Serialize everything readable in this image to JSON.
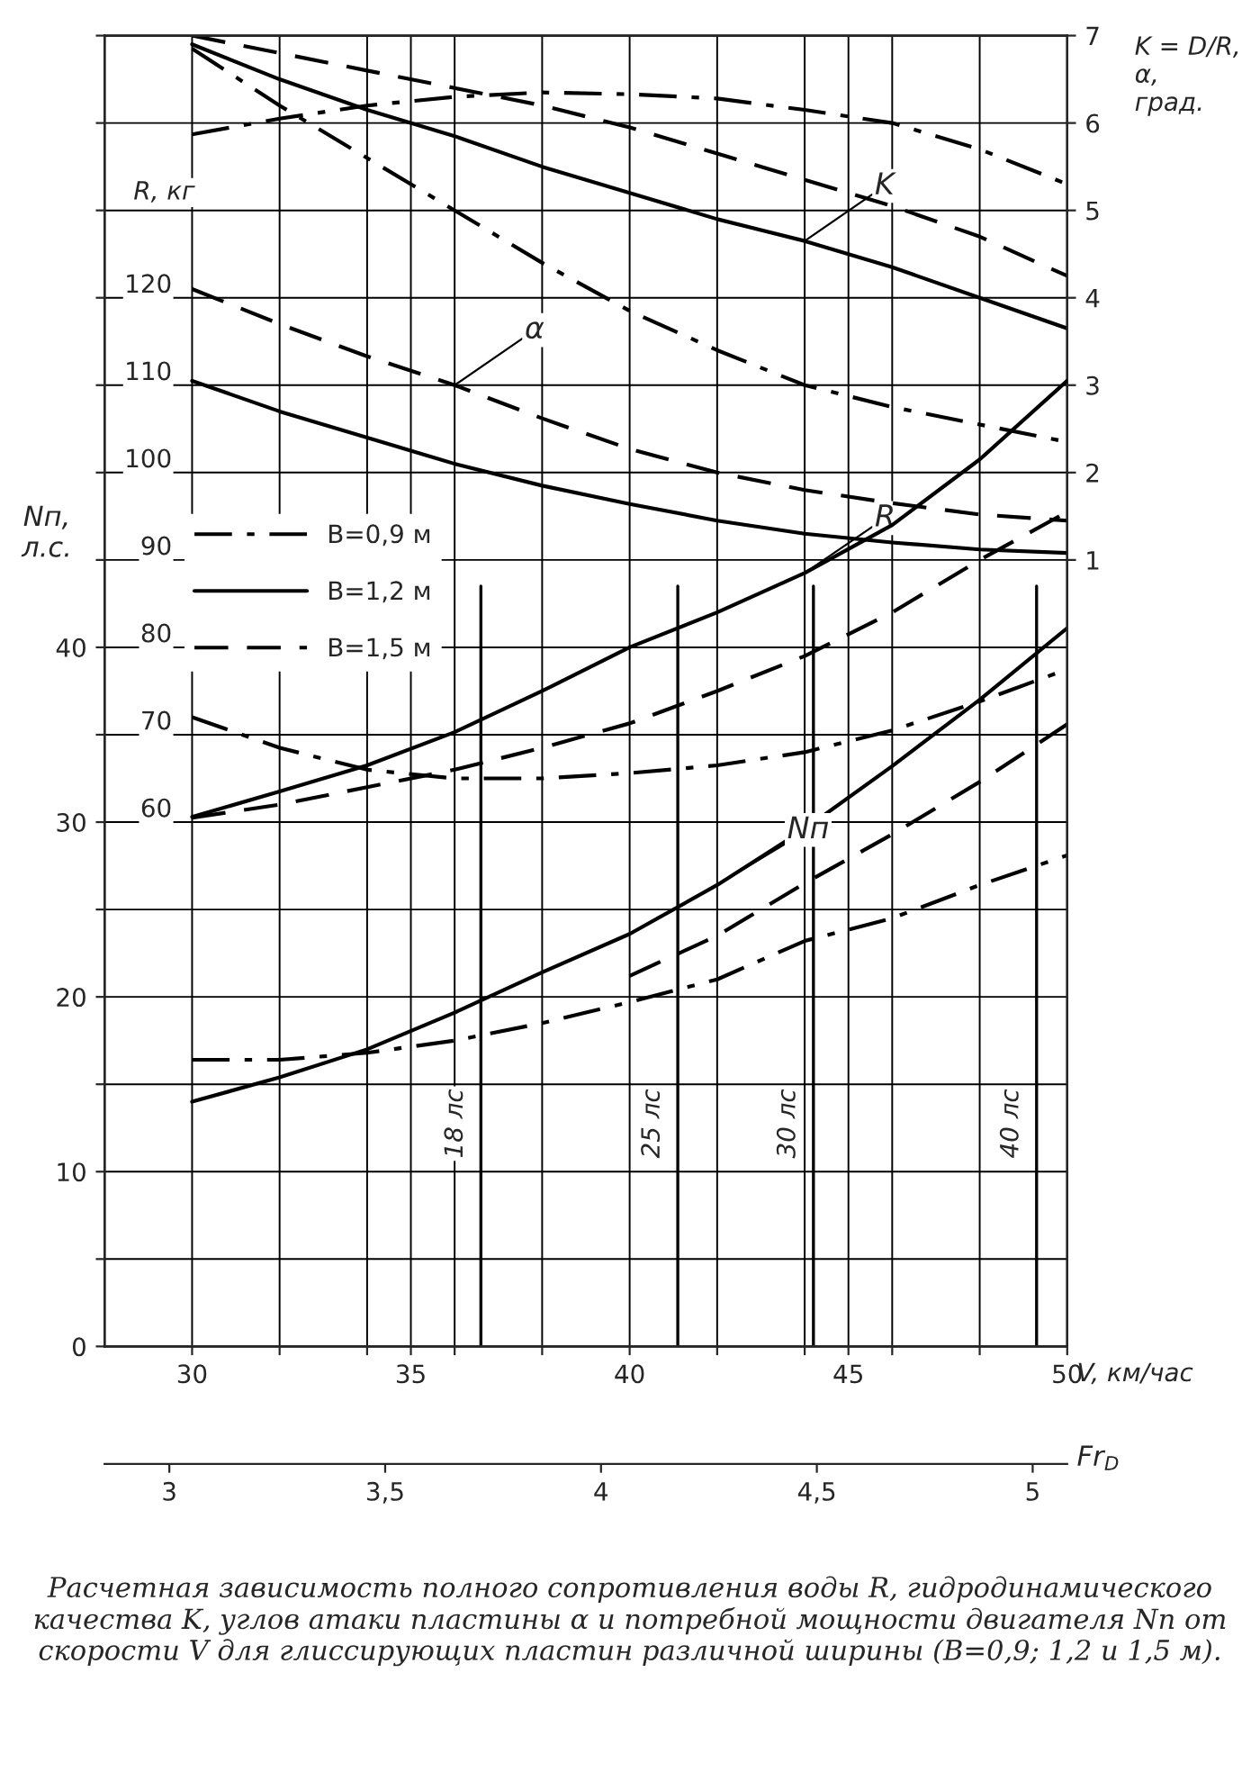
{
  "chart_data": {
    "type": "line",
    "x": [
      30,
      32,
      34,
      36,
      38,
      40,
      42,
      44,
      46,
      48,
      50
    ],
    "series": [
      {
        "axis": "y2",
        "color": "#000000",
        "line_style": "dashdot",
        "values": [
          5.87,
          6.05,
          6.2,
          6.3,
          6.35,
          6.33,
          6.28,
          6.15,
          6.0,
          5.7,
          5.3
        ]
      },
      {
        "axis": "y2",
        "color": "#000000",
        "line_style": "solid",
        "values": [
          6.9,
          6.5,
          6.15,
          5.85,
          5.5,
          5.2,
          4.9,
          4.65,
          4.35,
          4.0,
          3.65
        ]
      },
      {
        "axis": "y2",
        "color": "#000000",
        "line_style": "dashed",
        "values": [
          7.0,
          6.8,
          6.6,
          6.4,
          6.2,
          5.95,
          5.65,
          5.35,
          5.05,
          4.7,
          4.25
        ]
      },
      {
        "axis": "y2",
        "color": "#000000",
        "line_style": "dashdot",
        "values": [
          6.85,
          6.2,
          5.6,
          5.0,
          4.4,
          3.85,
          3.4,
          3.0,
          2.75,
          2.55,
          2.35
        ]
      },
      {
        "axis": "y2",
        "color": "#000000",
        "line_style": "solid",
        "values": [
          3.05,
          2.7,
          2.4,
          2.1,
          1.85,
          1.64,
          1.45,
          1.3,
          1.2,
          1.12,
          1.08
        ]
      },
      {
        "axis": "y2",
        "color": "#000000",
        "line_style": "dashed",
        "values": [
          4.1,
          3.7,
          3.33,
          3.0,
          2.62,
          2.27,
          2.0,
          1.8,
          1.65,
          1.52,
          1.45
        ]
      },
      {
        "axis": "y3",
        "color": "#000000",
        "line_style": "dashdot",
        "values": [
          72,
          68.5,
          66,
          65,
          65,
          65.6,
          66.5,
          68,
          70.5,
          73.8,
          77.5
        ]
      },
      {
        "axis": "y3",
        "color": "#000000",
        "line_style": "solid",
        "values": [
          60.6,
          63.5,
          66.5,
          70.3,
          75,
          80,
          84,
          88.5,
          94,
          101.5,
          110.5
        ]
      },
      {
        "axis": "y3",
        "color": "#000000",
        "line_style": "dashed",
        "values": [
          60.5,
          62,
          64,
          66,
          68.5,
          71.3,
          75,
          79,
          84,
          90,
          95.5
        ]
      },
      {
        "axis": "y",
        "name": "B=0,9 м",
        "color": "#000000",
        "line_style": "dashdot",
        "values": [
          16.4,
          16.4,
          16.8,
          17.5,
          18.5,
          19.7,
          21.0,
          23.2,
          24.5,
          26.4,
          28.1
        ]
      },
      {
        "axis": "y",
        "name": "B=1,2 м",
        "color": "#000000",
        "line_style": "solid",
        "values": [
          14.0,
          15.4,
          17.0,
          19.1,
          21.4,
          23.6,
          26.4,
          29.6,
          33.2,
          37.0,
          41.1
        ]
      },
      {
        "axis": "y",
        "name": "B=1,5 м",
        "color": "#000000",
        "line_style": "dashed",
        "x": [
          40,
          42,
          44,
          46,
          48,
          50
        ],
        "values": [
          21.2,
          23.5,
          26.5,
          29.3,
          32.3,
          35.6
        ]
      }
    ],
    "xlabel": "V, км/час",
    "ylabel": "Nп, л.с.",
    "y2label": "K = D/R, α, град.",
    "y3label": "R, кг",
    "x2label": "Fr$_{D}$",
    "xlim": [
      28,
      50
    ],
    "xticks": [
      30,
      {
        "value": 32,
        "label": null
      },
      {
        "value": 34,
        "label": null
      },
      35,
      {
        "value": 36,
        "label": null
      },
      {
        "value": 38,
        "label": null
      },
      40,
      {
        "value": 42,
        "label": null
      },
      {
        "value": 44,
        "label": null
      },
      45,
      {
        "value": 46,
        "label": null
      },
      {
        "value": 48,
        "label": null
      },
      50
    ],
    "ylim": [
      0,
      75
    ],
    "yticks": [
      0,
      {
        "value": 5,
        "label": null
      },
      10,
      {
        "value": 15,
        "label": null
      },
      20,
      {
        "value": 25,
        "label": null
      },
      30,
      {
        "value": 35,
        "label": null
      },
      40,
      {
        "value": 45,
        "label": null
      },
      {
        "value": 50,
        "label": null
      },
      {
        "value": 55,
        "label": null
      },
      {
        "value": 60,
        "label": null
      },
      {
        "value": 65,
        "label": null
      },
      {
        "value": 70,
        "label": null
      },
      {
        "value": 75,
        "label": null
      }
    ],
    "y2lim": [
      -8,
      7
    ],
    "y2ticks": [
      1,
      2,
      3,
      4,
      5,
      6,
      7
    ],
    "y3lim": [
      0,
      150
    ],
    "y3ticks": [
      60,
      70,
      80,
      90,
      100,
      110,
      120
    ],
    "x2lim": [
      2.85,
      5.08
    ],
    "x2ticks": [
      3,
      {
        "value": 3.5,
        "label": "3,5"
      },
      4,
      {
        "value": 4.5,
        "label": "4,5"
      },
      5
    ],
    "ref_lines": [
      {
        "axis": "x",
        "value": 36.6,
        "label": "18 лс"
      },
      {
        "axis": "x",
        "value": 41.1,
        "label": "25 лс"
      },
      {
        "axis": "x",
        "value": 44.2,
        "label": "30 лс"
      },
      {
        "axis": "x",
        "value": 49.3,
        "label": "40 лс"
      }
    ],
    "annotations": [
      {
        "text": "K",
        "x": 44,
        "y": 63.25
      },
      {
        "text": "α",
        "x": 36,
        "y": 55
      },
      {
        "text": "R",
        "x": 44,
        "y": 44.25
      },
      {
        "text": "Nп",
        "x": 42,
        "y": 26.4
      },
      "Расчетная зависимость полного сопротивления воды R, гидродинамического качества K, углов атаки пластины α и потребной мощности двигателя Nп от скорости V для глиссирующих пластин различной ширины (B=0,9; 1,2 и 1,5 м)."
    ],
    "grid": true,
    "legend": "left"
  }
}
